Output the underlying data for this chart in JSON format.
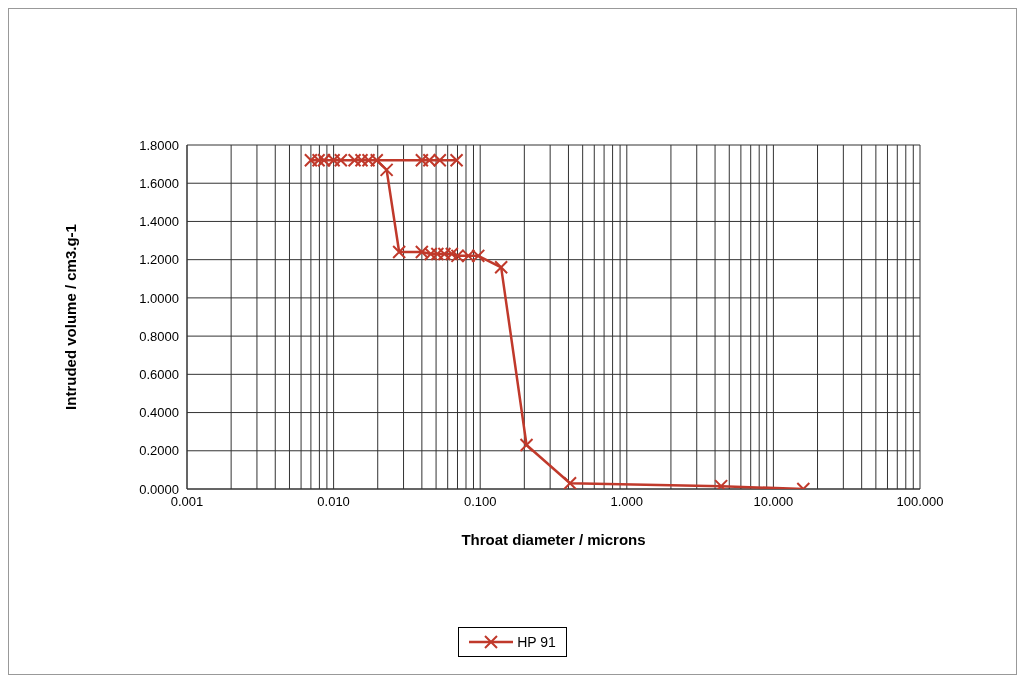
{
  "chart_data": {
    "type": "line",
    "xlabel": "Throat diameter / microns",
    "ylabel": "Intruded volume / cm3.g-1",
    "log": "x",
    "grid": true,
    "legend": "bottom",
    "marker": "cross",
    "line_style": "solid",
    "xlim": [
      0.001,
      100
    ],
    "xticks": [
      {
        "value": 0.001,
        "label": "0.001"
      },
      {
        "value": 0.002,
        "label": null
      },
      {
        "value": 0.003,
        "label": null
      },
      {
        "value": 0.004,
        "label": null
      },
      {
        "value": 0.005,
        "label": null
      },
      {
        "value": 0.006,
        "label": null
      },
      {
        "value": 0.007,
        "label": null
      },
      {
        "value": 0.008,
        "label": null
      },
      {
        "value": 0.009,
        "label": null
      },
      {
        "value": 0.01,
        "label": "0.010"
      },
      {
        "value": 0.02,
        "label": null
      },
      {
        "value": 0.03,
        "label": null
      },
      {
        "value": 0.04,
        "label": null
      },
      {
        "value": 0.05,
        "label": null
      },
      {
        "value": 0.06,
        "label": null
      },
      {
        "value": 0.07,
        "label": null
      },
      {
        "value": 0.08,
        "label": null
      },
      {
        "value": 0.09,
        "label": null
      },
      {
        "value": 0.1,
        "label": "0.100"
      },
      {
        "value": 0.2,
        "label": null
      },
      {
        "value": 0.3,
        "label": null
      },
      {
        "value": 0.4,
        "label": null
      },
      {
        "value": 0.5,
        "label": null
      },
      {
        "value": 0.6,
        "label": null
      },
      {
        "value": 0.7,
        "label": null
      },
      {
        "value": 0.8,
        "label": null
      },
      {
        "value": 0.9,
        "label": null
      },
      {
        "value": 1,
        "label": "1.000"
      },
      {
        "value": 2,
        "label": null
      },
      {
        "value": 3,
        "label": null
      },
      {
        "value": 4,
        "label": null
      },
      {
        "value": 5,
        "label": null
      },
      {
        "value": 6,
        "label": null
      },
      {
        "value": 7,
        "label": null
      },
      {
        "value": 8,
        "label": null
      },
      {
        "value": 9,
        "label": null
      },
      {
        "value": 10,
        "label": "10.000"
      },
      {
        "value": 20,
        "label": null
      },
      {
        "value": 30,
        "label": null
      },
      {
        "value": 40,
        "label": null
      },
      {
        "value": 50,
        "label": null
      },
      {
        "value": 60,
        "label": null
      },
      {
        "value": 70,
        "label": null
      },
      {
        "value": 80,
        "label": null
      },
      {
        "value": 90,
        "label": null
      },
      {
        "value": 100,
        "label": "100.000"
      }
    ],
    "ylim": [
      0,
      1.8
    ],
    "yticks": [
      {
        "value": 0,
        "label": "0.0000"
      },
      {
        "value": 0.2,
        "label": "0.2000"
      },
      {
        "value": 0.4,
        "label": "0.4000"
      },
      {
        "value": 0.6,
        "label": "0.6000"
      },
      {
        "value": 0.8,
        "label": "0.8000"
      },
      {
        "value": 1,
        "label": "1.0000"
      },
      {
        "value": 1.2,
        "label": "1.2000"
      },
      {
        "value": 1.4,
        "label": "1.4000"
      },
      {
        "value": 1.6,
        "label": "1.6000"
      },
      {
        "value": 1.8,
        "label": "1.8000"
      }
    ],
    "series": [
      {
        "name": "HP 91",
        "color": "#c0392b",
        "x": [
          16,
          4.4,
          0.41,
          0.207,
          0.139,
          0.097,
          0.083,
          0.07,
          0.064,
          0.057,
          0.051,
          0.046,
          0.04,
          0.028,
          0.023,
          0.0197,
          0.0155,
          0.0112,
          0.0086,
          0.007,
          0.0079,
          0.01,
          0.0139,
          0.0173,
          0.04,
          0.045,
          0.053,
          0.069
        ],
        "values": [
          0,
          0.015,
          0.03,
          0.23,
          1.16,
          1.22,
          1.22,
          1.22,
          1.23,
          1.23,
          1.23,
          1.23,
          1.24,
          1.24,
          1.67,
          1.72,
          1.72,
          1.72,
          1.72,
          1.72,
          1.72,
          1.72,
          1.72,
          1.72,
          1.72,
          1.72,
          1.72,
          1.72
        ]
      }
    ]
  }
}
